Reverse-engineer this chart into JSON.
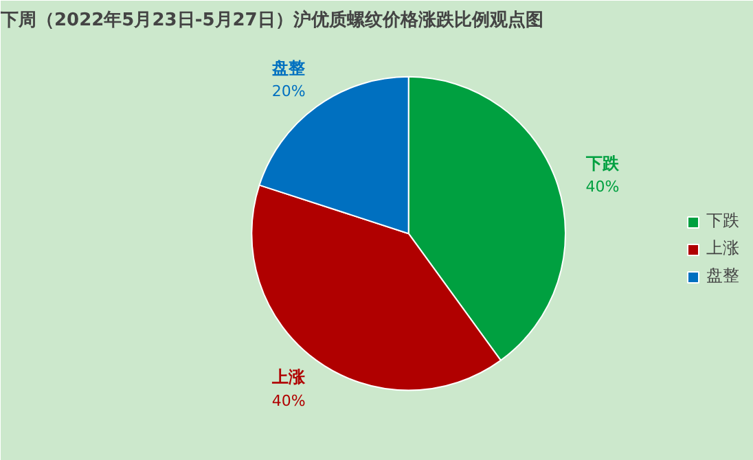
{
  "chart_data": {
    "type": "pie",
    "title": "下周（2022年5月23日-5月27日）沪优质螺纹价格涨跌比例观点图",
    "categories": [
      "下跌",
      "上涨",
      "盘整"
    ],
    "values": [
      40,
      40,
      20
    ],
    "colors": [
      "#00a040",
      "#b00000",
      "#0070c0"
    ],
    "value_labels": [
      "40%",
      "40%",
      "20%"
    ],
    "legend": "right"
  }
}
